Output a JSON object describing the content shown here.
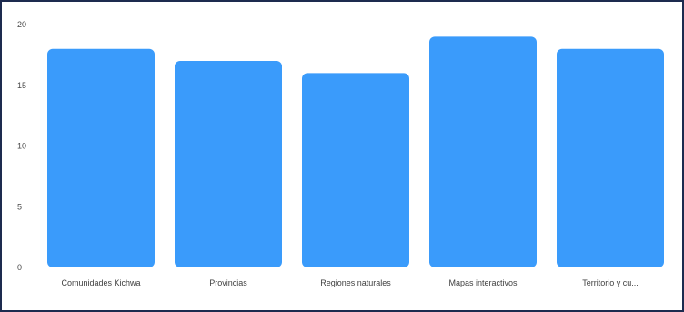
{
  "colors": {
    "bar": "#3a9bfb",
    "frame": "#1d2b4f",
    "background": "#ffffff"
  },
  "chart_data": {
    "type": "bar",
    "categories": [
      "Comunidades Kichwa",
      "Provincias",
      "Regiones naturales",
      "Mapas interactivos",
      "Territorio y cu..."
    ],
    "values": [
      18,
      17,
      16,
      19,
      18
    ],
    "title": "",
    "xlabel": "",
    "ylabel": "",
    "ylim": [
      0,
      20
    ],
    "yticks": [
      "0",
      "5",
      "10",
      "15",
      "20"
    ],
    "grid": false,
    "legend": "none"
  }
}
